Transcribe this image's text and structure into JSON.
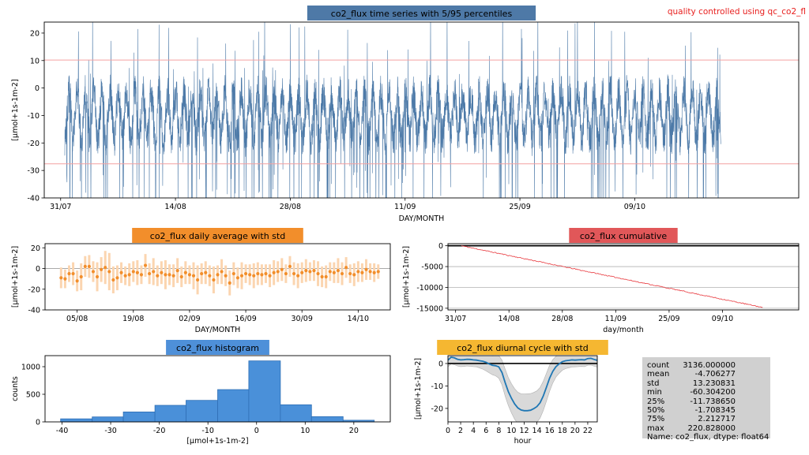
{
  "annotation": "quality controlled using qc_co2_fl",
  "colors": {
    "timeseries_line": "#4d7aa8",
    "timeseries_title_bg": "#4e79a7",
    "percentile_line": "#f4a0a0",
    "daily_title_bg": "#f28e2b",
    "daily_point": "#f28e2b",
    "daily_errorbar": "#fbd5b0",
    "cumulative_title_bg": "#e15759",
    "cumulative_line": "#e8383d",
    "histogram_title_bg": "#4e90d9",
    "histogram_bar": "#4a90d9",
    "diurnal_title_bg": "#f5b731",
    "diurnal_line": "#1f77b4",
    "diurnal_band": "#d9d9d9",
    "stats_bg": "#d0d0d0"
  },
  "chart_data": [
    {
      "id": "timeseries",
      "type": "line",
      "title": "co2_flux time series with 5/95 percentiles",
      "xlabel": "DAY/MONTH",
      "ylabel": "[μmol+1s-1m-2]",
      "x_ticks": [
        "31/07",
        "14/08",
        "28/08",
        "11/09",
        "25/09",
        "09/10"
      ],
      "y_ticks": [
        20,
        10,
        0,
        -10,
        -20,
        -30,
        -40
      ],
      "ylim": [
        -40,
        24
      ],
      "x_range_days": [
        -2,
        90
      ],
      "data_range_days": [
        0.5,
        80.5
      ],
      "percentile_lines": [
        10.2,
        -27.6
      ],
      "series_note": "half-hourly flux, strong diurnal oscillation between about -40 and +24",
      "grid": false
    },
    {
      "id": "daily",
      "type": "scatter",
      "title": "co2_flux daily average with std",
      "xlabel": "DAY/MONTH",
      "ylabel": "[μmol+1s-1m-2]",
      "x_ticks": [
        "05/08",
        "19/08",
        "02/09",
        "16/09",
        "30/09",
        "14/10"
      ],
      "y_ticks": [
        20,
        0,
        -20,
        -40
      ],
      "ylim": [
        -40,
        24
      ],
      "zero_line": 0,
      "points": [
        {
          "day": 1,
          "mean": -9,
          "std": 10
        },
        {
          "day": 2,
          "mean": -10,
          "std": 9
        },
        {
          "day": 3,
          "mean": -5,
          "std": 8
        },
        {
          "day": 4,
          "mean": -5,
          "std": 11
        },
        {
          "day": 5,
          "mean": -12,
          "std": 10
        },
        {
          "day": 6,
          "mean": -8,
          "std": 13
        },
        {
          "day": 7,
          "mean": 2,
          "std": 10
        },
        {
          "day": 8,
          "mean": 2,
          "std": 11
        },
        {
          "day": 9,
          "mean": -3,
          "std": 10
        },
        {
          "day": 10,
          "mean": -8,
          "std": 14
        },
        {
          "day": 11,
          "mean": -1,
          "std": 12
        },
        {
          "day": 12,
          "mean": 1,
          "std": 16
        },
        {
          "day": 13,
          "mean": -3,
          "std": 18
        },
        {
          "day": 14,
          "mean": -11,
          "std": 13
        },
        {
          "day": 15,
          "mean": -9,
          "std": 12
        },
        {
          "day": 16,
          "mean": -4,
          "std": 10
        },
        {
          "day": 17,
          "mean": -7,
          "std": 9
        },
        {
          "day": 18,
          "mean": -6,
          "std": 11
        },
        {
          "day": 19,
          "mean": -3,
          "std": 10
        },
        {
          "day": 20,
          "mean": -4,
          "std": 12
        },
        {
          "day": 21,
          "mean": -6,
          "std": 9
        },
        {
          "day": 22,
          "mean": 3,
          "std": 11
        },
        {
          "day": 23,
          "mean": -5,
          "std": 10
        },
        {
          "day": 24,
          "mean": -3,
          "std": 13
        },
        {
          "day": 25,
          "mean": -7,
          "std": 10
        },
        {
          "day": 26,
          "mean": -4,
          "std": 11
        },
        {
          "day": 27,
          "mean": -6,
          "std": 14
        },
        {
          "day": 28,
          "mean": -6,
          "std": 10
        },
        {
          "day": 29,
          "mean": -7,
          "std": 11
        },
        {
          "day": 30,
          "mean": -2,
          "std": 12
        },
        {
          "day": 31,
          "mean": -8,
          "std": 10
        },
        {
          "day": 32,
          "mean": -4,
          "std": 11
        },
        {
          "day": 33,
          "mean": -6,
          "std": 9
        },
        {
          "day": 34,
          "mean": -7,
          "std": 13
        },
        {
          "day": 35,
          "mean": -11,
          "std": 14
        },
        {
          "day": 36,
          "mean": -5,
          "std": 10
        },
        {
          "day": 37,
          "mean": -4,
          "std": 11
        },
        {
          "day": 38,
          "mean": -7,
          "std": 10
        },
        {
          "day": 39,
          "mean": -11,
          "std": 13
        },
        {
          "day": 40,
          "mean": -6,
          "std": 9
        },
        {
          "day": 41,
          "mean": -3,
          "std": 12
        },
        {
          "day": 42,
          "mean": -7,
          "std": 10
        },
        {
          "day": 43,
          "mean": -14,
          "std": 12
        },
        {
          "day": 44,
          "mean": -5,
          "std": 11
        },
        {
          "day": 45,
          "mean": -9,
          "std": 10
        },
        {
          "day": 46,
          "mean": -7,
          "std": 13
        },
        {
          "day": 47,
          "mean": -5,
          "std": 9
        },
        {
          "day": 48,
          "mean": -6,
          "std": 10
        },
        {
          "day": 49,
          "mean": -7,
          "std": 12
        },
        {
          "day": 50,
          "mean": -5,
          "std": 11
        },
        {
          "day": 51,
          "mean": -6,
          "std": 10
        },
        {
          "day": 52,
          "mean": -5,
          "std": 9
        },
        {
          "day": 53,
          "mean": -7,
          "std": 11
        },
        {
          "day": 54,
          "mean": -4,
          "std": 12
        },
        {
          "day": 55,
          "mean": -3,
          "std": 10
        },
        {
          "day": 56,
          "mean": -1,
          "std": 11
        },
        {
          "day": 57,
          "mean": -5,
          "std": 9
        },
        {
          "day": 58,
          "mean": 2,
          "std": 10
        },
        {
          "day": 59,
          "mean": -5,
          "std": 11
        },
        {
          "day": 60,
          "mean": -7,
          "std": 12
        },
        {
          "day": 61,
          "mean": -4,
          "std": 10
        },
        {
          "day": 62,
          "mean": -2,
          "std": 11
        },
        {
          "day": 63,
          "mean": -3,
          "std": 9
        },
        {
          "day": 64,
          "mean": -2,
          "std": 10
        },
        {
          "day": 65,
          "mean": -5,
          "std": 12
        },
        {
          "day": 66,
          "mean": -8,
          "std": 10
        },
        {
          "day": 67,
          "mean": -8,
          "std": 11
        },
        {
          "day": 68,
          "mean": -3,
          "std": 9
        },
        {
          "day": 69,
          "mean": -4,
          "std": 10
        },
        {
          "day": 70,
          "mean": -2,
          "std": 12
        },
        {
          "day": 71,
          "mean": -5,
          "std": 11
        },
        {
          "day": 72,
          "mean": 1,
          "std": 10
        },
        {
          "day": 73,
          "mean": -5,
          "std": 9
        },
        {
          "day": 74,
          "mean": -6,
          "std": 11
        },
        {
          "day": 75,
          "mean": -3,
          "std": 10
        },
        {
          "day": 76,
          "mean": -4,
          "std": 9
        },
        {
          "day": 77,
          "mean": -1,
          "std": 10
        },
        {
          "day": 78,
          "mean": -3,
          "std": 8
        },
        {
          "day": 79,
          "mean": -4,
          "std": 9
        },
        {
          "day": 80,
          "mean": -3,
          "std": 7
        }
      ],
      "x_range_days": [
        -3,
        83
      ]
    },
    {
      "id": "cumulative",
      "type": "line",
      "title": "co2_flux cumulative",
      "xlabel": "day/month",
      "ylabel": "[μmol+1s-1m-2]",
      "x_ticks": [
        "31/07",
        "14/08",
        "28/08",
        "11/09",
        "25/09",
        "09/10"
      ],
      "y_ticks": [
        0,
        -5000,
        -10000,
        -15000
      ],
      "ylim": [
        -15400,
        500
      ],
      "x_range_days": [
        -2,
        90
      ],
      "start": {
        "day": 1.5,
        "value": 0
      },
      "end": {
        "day": 80.5,
        "value": -14800
      },
      "grid": true,
      "zero_line": 0
    },
    {
      "id": "histogram",
      "type": "bar",
      "title": "co2_flux histogram",
      "xlabel": "[μmol+1s-1m-2]",
      "ylabel": "counts",
      "x_ticks": [
        -40,
        -30,
        -20,
        -10,
        0,
        10,
        20
      ],
      "y_ticks": [
        0,
        500,
        1000
      ],
      "bin_edges": [
        -40.3,
        -33.8,
        -27.4,
        -20.9,
        -14.5,
        -8.0,
        -1.6,
        4.9,
        11.3,
        17.8,
        24.2
      ],
      "counts": [
        55,
        90,
        180,
        300,
        390,
        585,
        1105,
        310,
        95,
        30
      ],
      "xlim": [
        -43.5,
        27.5
      ],
      "ylim": [
        0,
        1200
      ]
    },
    {
      "id": "diurnal",
      "type": "line",
      "title": "co2_flux diurnal cycle with std",
      "xlabel": "hour",
      "ylabel": "[μmol+1s-1m-2]",
      "x_ticks": [
        0,
        2,
        4,
        6,
        8,
        10,
        12,
        14,
        16,
        18,
        20,
        22
      ],
      "y_ticks": [
        0,
        -10,
        -20
      ],
      "ylim": [
        -26,
        3.5
      ],
      "xlim": [
        0,
        23.5
      ],
      "zero_line": 0,
      "hours": [
        0,
        0.5,
        1,
        1.5,
        2,
        2.5,
        3,
        3.5,
        4,
        4.5,
        5,
        5.5,
        6,
        6.5,
        7,
        7.5,
        8,
        8.5,
        9,
        9.5,
        10,
        10.5,
        11,
        11.5,
        12,
        12.5,
        13,
        13.5,
        14,
        14.5,
        15,
        15.5,
        16,
        16.5,
        17,
        17.5,
        18,
        18.5,
        19,
        19.5,
        20,
        20.5,
        21,
        21.5,
        22,
        22.5,
        23,
        23.5
      ],
      "mean": [
        1.5,
        2.8,
        2.5,
        1.9,
        1.6,
        1.7,
        1.9,
        1.8,
        1.6,
        1.5,
        1.2,
        1,
        0.5,
        -0.2,
        -0.8,
        -1,
        -1.5,
        -4,
        -8.5,
        -12.5,
        -15.5,
        -18,
        -19.8,
        -20.7,
        -21,
        -21,
        -20.8,
        -20.1,
        -19.2,
        -17.5,
        -14.5,
        -10.5,
        -6.5,
        -3.5,
        -1.4,
        -0.2,
        0.8,
        1.2,
        1.4,
        1.6,
        1.5,
        1.6,
        1.7,
        1.6,
        2.2,
        2.3,
        1.8,
        1.4
      ],
      "std": [
        3,
        3,
        3,
        3,
        3,
        3,
        3,
        3,
        3,
        3,
        3.2,
        3.5,
        3.8,
        4,
        4.2,
        4.5,
        5,
        5.5,
        6,
        6.2,
        6.5,
        6.8,
        7,
        7.2,
        7.4,
        7.5,
        7.4,
        7.2,
        7,
        6.8,
        6.5,
        6.2,
        5.8,
        5.2,
        4.6,
        4.2,
        3.8,
        3.5,
        3.3,
        3.2,
        3,
        3,
        3,
        3,
        3,
        3,
        3,
        3
      ]
    }
  ],
  "stats": [
    {
      "key": "count",
      "value": "3136.000000"
    },
    {
      "key": "mean",
      "value": "-4.706277"
    },
    {
      "key": "std",
      "value": "13.230831"
    },
    {
      "key": "min",
      "value": "-60.304200"
    },
    {
      "key": "25%",
      "value": "-11.738650"
    },
    {
      "key": "50%",
      "value": "-1.708345"
    },
    {
      "key": "75%",
      "value": "2.212717"
    },
    {
      "key": "max",
      "value": "220.828000"
    },
    {
      "key": "name_line",
      "value": "Name: co2_flux, dtype: float64"
    }
  ]
}
